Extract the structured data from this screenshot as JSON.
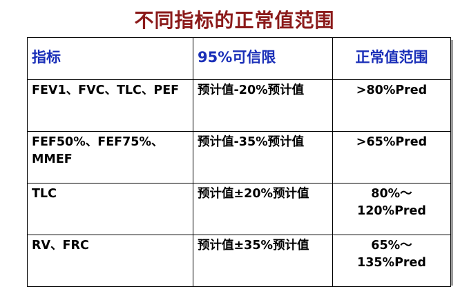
{
  "title": "不同指标的正常值范围",
  "table": {
    "headers": [
      "指标",
      "95%可信限",
      "正常值范围"
    ],
    "rows": [
      [
        "FEV1、FVC、TLC、PEF",
        "预计值-20%预计值",
        ">80%Pred"
      ],
      [
        "FEF50%、FEF75%、MMEF",
        "预计值-35%预计值",
        ">65%Pred"
      ],
      [
        "TLC",
        "预计值±20%预计值",
        "80%～120%Pred"
      ],
      [
        "RV、FRC",
        "预计值±35%预计值",
        "65%～135%Pred"
      ]
    ]
  },
  "colors": {
    "title": "#8b1a1a",
    "header_text": "#1a2fb8",
    "body_text": "#000000"
  }
}
